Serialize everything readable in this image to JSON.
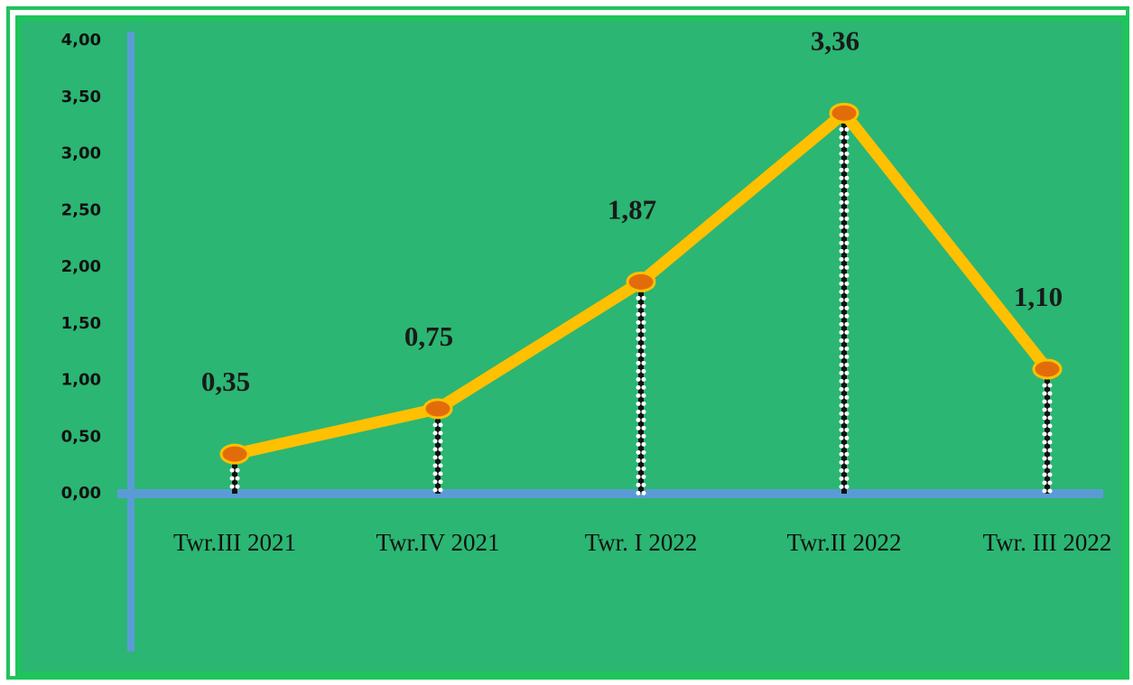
{
  "chart_data": {
    "type": "line",
    "categories": [
      "Twr.III 2021",
      "Twr.IV 2021",
      "Twr. I 2022",
      "Twr.II 2022",
      "Twr. III 2022"
    ],
    "series": [
      {
        "color": "#ffc000",
        "values": [
          0.35,
          0.75,
          1.87,
          3.36,
          1.1
        ],
        "value_labels": [
          "0,35",
          "0,75",
          "1,87",
          "3,36",
          "1,10"
        ]
      }
    ],
    "ylim": [
      0,
      4
    ],
    "yticks": [
      {
        "value": 0,
        "label": "0,00"
      },
      {
        "value": 0.5,
        "label": "0,50"
      },
      {
        "value": 1,
        "label": "1,00"
      },
      {
        "value": 1.5,
        "label": "1,50"
      },
      {
        "value": 2,
        "label": "2,00"
      },
      {
        "value": 2.5,
        "label": "2,50"
      },
      {
        "value": 3,
        "label": "3,00"
      },
      {
        "value": 3.5,
        "label": "3,50"
      },
      {
        "value": 4,
        "label": "4,00"
      }
    ],
    "marker_color": "#e36c0a",
    "axis_color": "#5b9bd5",
    "background": "#2bb673"
  }
}
